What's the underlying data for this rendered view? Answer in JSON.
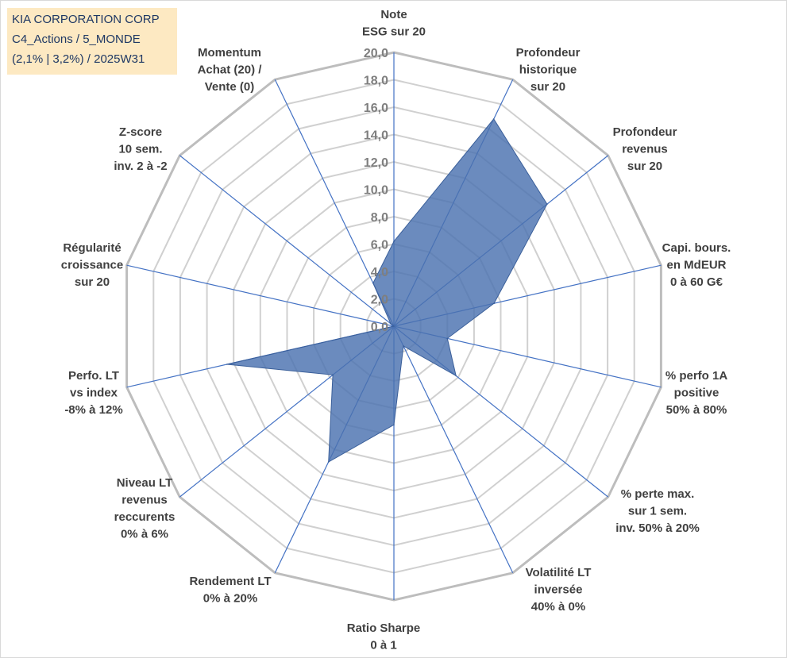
{
  "header_box": {
    "line1": "KIA CORPORATION CORP",
    "line2": "C4_Actions / 5_MONDE",
    "line3": "(2,1% | 3,2%) / 2025W31"
  },
  "colors": {
    "grid": "#bfbfbf",
    "spoke": "#4472c4",
    "fill": "#4a72b0",
    "info_bg": "#fde9c2",
    "info_text": "#1f3864"
  },
  "chart_data": {
    "type": "radar",
    "rmax": 20,
    "ticks": [
      0,
      2,
      4,
      6,
      8,
      10,
      12,
      14,
      16,
      18,
      20
    ],
    "tick_labels": [
      "0,0",
      "2,0",
      "4,0",
      "6,0",
      "8,0",
      "10,0",
      "12,0",
      "14,0",
      "16,0",
      "18,0",
      "20,0"
    ],
    "axes": [
      {
        "label": [
          "Note",
          "ESG sur 20"
        ],
        "value": 6.2
      },
      {
        "label": [
          "Profondeur",
          "historique",
          "sur 20"
        ],
        "value": 16.8
      },
      {
        "label": [
          "Profondeur",
          "revenus",
          "sur 20"
        ],
        "value": 14.3
      },
      {
        "label": [
          "Capi. bours.",
          "en MdEUR",
          "0 à 60 G€"
        ],
        "value": 7.5
      },
      {
        "label": [
          "% perfo 1A",
          "positive",
          "50% à 80%"
        ],
        "value": 4.0
      },
      {
        "label": [
          "% perte max.",
          "sur 1 sem.",
          "inv. 50% à 20%"
        ],
        "value": 5.8
      },
      {
        "label": [
          "Volatilité LT",
          "inversée",
          "40% à 0%"
        ],
        "value": 1.6
      },
      {
        "label": [
          "Ratio Sharpe",
          "0 à 1"
        ],
        "value": 7.2
      },
      {
        "label": [
          "Rendement LT",
          "0% à 20%"
        ],
        "value": 11.0
      },
      {
        "label": [
          "Niveau LT",
          "revenus",
          "reccurents",
          "0% à 6%"
        ],
        "value": 5.7
      },
      {
        "label": [
          "Perfo. LT",
          "vs index",
          "-8% à 12%"
        ],
        "value": 12.5
      },
      {
        "label": [
          "Régularité",
          "croissance",
          "sur 20"
        ],
        "value": 0.0
      },
      {
        "label": [
          "Z-score",
          "10 sem.",
          "inv. 2 à -2"
        ],
        "value": 0.3
      },
      {
        "label": [
          "Momentum",
          "Achat (20) /",
          "Vente (0)"
        ],
        "value": 3.5
      }
    ]
  }
}
